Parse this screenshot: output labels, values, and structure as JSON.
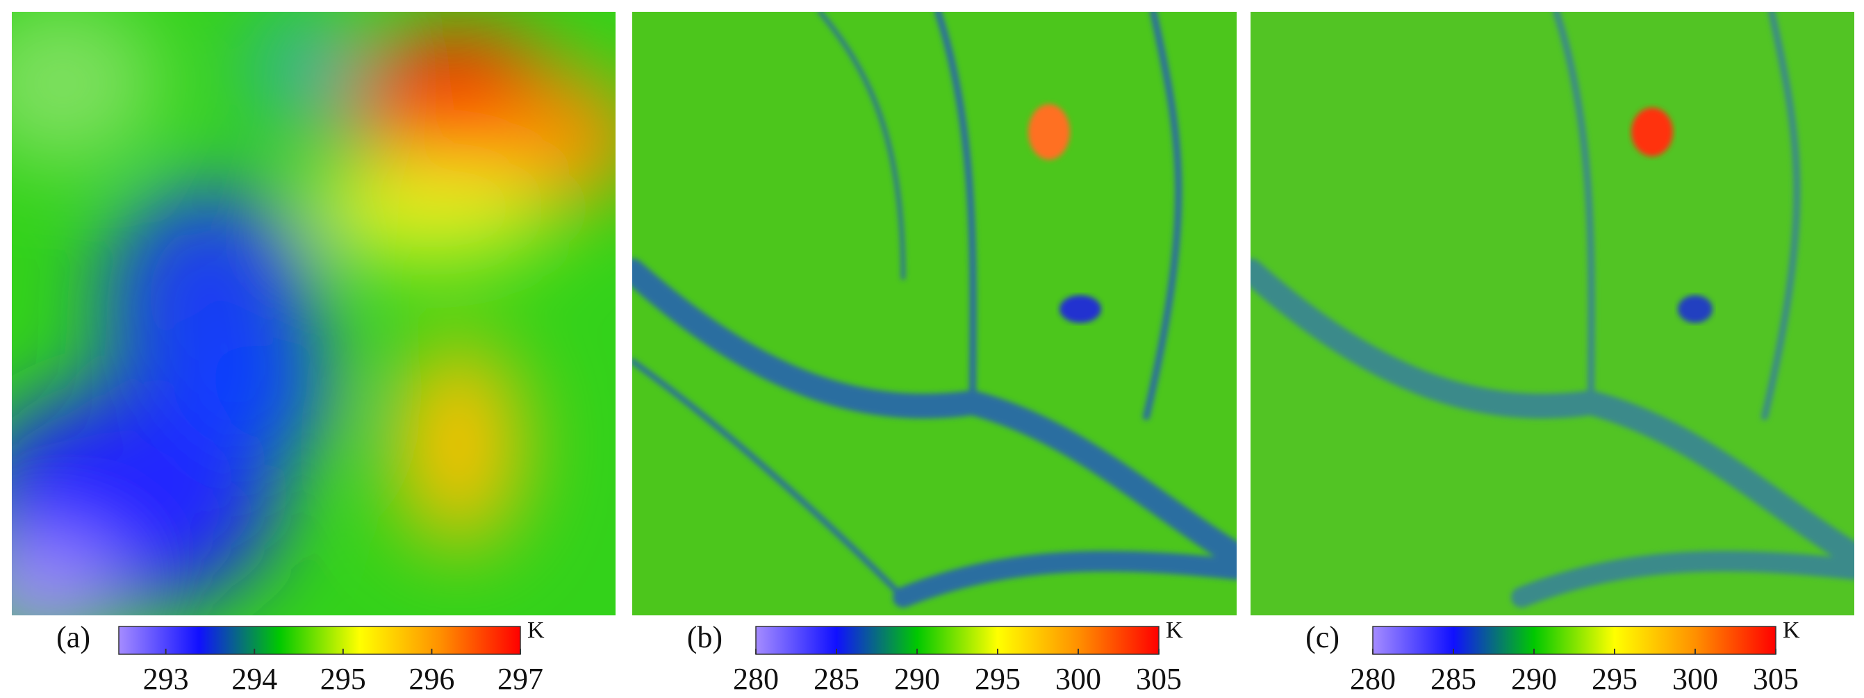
{
  "chart_data": [
    {
      "type": "heatmap",
      "label": "(a)",
      "unit": "K",
      "colormap": [
        "#a58cff",
        "#1010ff",
        "#00c800",
        "#ffff00",
        "#ff9000",
        "#ff0000"
      ],
      "clim": [
        292.47,
        297
      ],
      "cticks": [
        293,
        294,
        295,
        296,
        297
      ]
    },
    {
      "type": "heatmap",
      "label": "(b)",
      "unit": "K",
      "colormap": [
        "#a58cff",
        "#1010ff",
        "#00c800",
        "#ffff00",
        "#ff9000",
        "#ff0000"
      ],
      "clim": [
        280,
        305
      ],
      "cticks": [
        280,
        285,
        290,
        295,
        300,
        305
      ]
    },
    {
      "type": "heatmap",
      "label": "(c)",
      "unit": "K",
      "colormap": [
        "#a58cff",
        "#1010ff",
        "#00c800",
        "#ffff00",
        "#ff9000",
        "#ff0000"
      ],
      "clim": [
        280,
        305
      ],
      "cticks": [
        280,
        285,
        290,
        295,
        300,
        305
      ]
    }
  ]
}
